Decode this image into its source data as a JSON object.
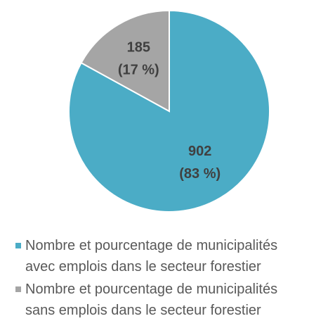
{
  "chart_data": {
    "type": "pie",
    "series": [
      {
        "name": "Nombre et pourcentage de municipalités avec emplois dans le secteur forestier",
        "color": "#4bacc6"
      },
      {
        "name": "Nombre et pourcentage de municipalités sans emplois dans le secteur forestier",
        "color": "#a5a5a5"
      }
    ],
    "values": [
      902,
      185
    ],
    "percentages": [
      83,
      17
    ],
    "percentage_labels": [
      "(83 %)",
      "(17 %)"
    ]
  }
}
